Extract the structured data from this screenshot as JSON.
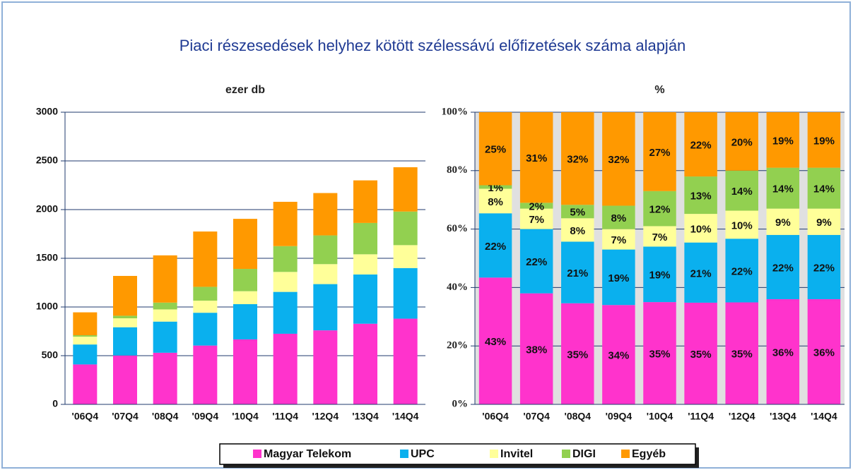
{
  "title": "Piaci részesedések helyhez kötött szélessávú előfizetések száma alapján",
  "chart_data": [
    {
      "type": "bar",
      "stacked": true,
      "title": "ezer db",
      "categories": [
        "'06Q4",
        "'07Q4",
        "'08Q4",
        "'09Q4",
        "'10Q4",
        "'11Q4",
        "'12Q4",
        "'13Q4",
        "'14Q4"
      ],
      "series": [
        {
          "name": "Magyar Telekom",
          "color": "#ff33cc",
          "values": [
            410,
            502,
            530,
            604,
            667,
            725,
            760,
            828,
            880
          ]
        },
        {
          "name": "UPC",
          "color": "#0ab0ee",
          "values": [
            205,
            290,
            320,
            337,
            362,
            430,
            475,
            506,
            520
          ]
        },
        {
          "name": "Invitel",
          "color": "#ffff99",
          "values": [
            80,
            92,
            125,
            124,
            133,
            205,
            205,
            207,
            235
          ]
        },
        {
          "name": "DIGI",
          "color": "#92d050",
          "values": [
            15,
            26,
            70,
            142,
            229,
            265,
            295,
            322,
            345
          ]
        },
        {
          "name": "Egyéb",
          "color": "#ff9900",
          "values": [
            235,
            409,
            485,
            568,
            514,
            455,
            435,
            437,
            455
          ]
        }
      ],
      "ylim": [
        0,
        3000
      ],
      "yticks": [
        0,
        500,
        1000,
        1500,
        2000,
        2500,
        3000
      ],
      "grid": true
    },
    {
      "type": "bar",
      "stacked": true,
      "title": "%",
      "categories": [
        "'06Q4",
        "'07Q4",
        "'08Q4",
        "'09Q4",
        "'10Q4",
        "'11Q4",
        "'12Q4",
        "'13Q4",
        "'14Q4"
      ],
      "series": [
        {
          "name": "Magyar Telekom",
          "color": "#ff33cc",
          "values": [
            43.4,
            38,
            34.6,
            34,
            35,
            34.8,
            34.9,
            36,
            36
          ],
          "value_labels": [
            "43%",
            "38%",
            "35%",
            "34%",
            "35%",
            "35%",
            "35%",
            "36%",
            "36%"
          ]
        },
        {
          "name": "UPC",
          "color": "#0ab0ee",
          "values": [
            22,
            22,
            21.1,
            19,
            19,
            20.6,
            21.8,
            22,
            22
          ],
          "value_labels": [
            "22%",
            "22%",
            "21%",
            "19%",
            "19%",
            "21%",
            "22%",
            "22%",
            "22%"
          ]
        },
        {
          "name": "Invitel",
          "color": "#ffff99",
          "values": [
            8.4,
            7,
            8,
            7,
            7,
            9.8,
            9.6,
            9,
            9
          ],
          "value_labels": [
            "8%",
            "7%",
            "8%",
            "7%",
            "7%",
            "10%",
            "10%",
            "9%",
            "9%"
          ]
        },
        {
          "name": "DIGI",
          "color": "#92d050",
          "values": [
            1.2,
            2,
            4.6,
            8,
            12,
            12.8,
            13.7,
            14,
            14
          ],
          "value_labels": [
            "1%",
            "2%",
            "5%",
            "8%",
            "12%",
            "13%",
            "14%",
            "14%",
            "14%"
          ]
        },
        {
          "name": "Egyéb",
          "color": "#ff9900",
          "values": [
            25,
            31,
            31.7,
            32,
            27,
            22,
            20,
            19,
            19
          ],
          "value_labels": [
            "25%",
            "31%",
            "32%",
            "32%",
            "27%",
            "22%",
            "20%",
            "19%",
            "19%"
          ]
        }
      ],
      "ylim": [
        0,
        100
      ],
      "yticks": [
        {
          "value": 0,
          "label": "0%"
        },
        {
          "value": 20,
          "label": "20%"
        },
        {
          "value": 40,
          "label": "40%"
        },
        {
          "value": 60,
          "label": "60%"
        },
        {
          "value": 80,
          "label": "80%"
        },
        {
          "value": 100,
          "label": "100%"
        }
      ],
      "grid": true
    }
  ]
}
